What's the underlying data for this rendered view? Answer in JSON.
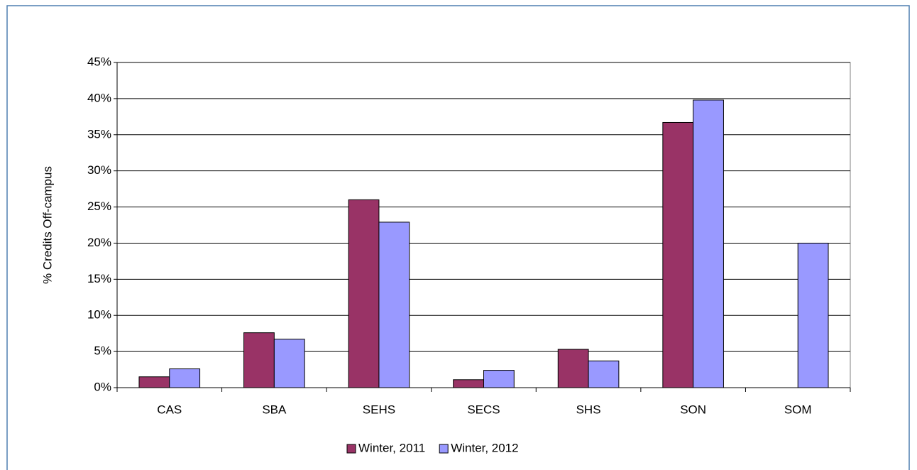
{
  "chart_data": {
    "type": "bar",
    "ylabel": "% Credits Off-campus",
    "categories": [
      "CAS",
      "SBA",
      "SEHS",
      "SECS",
      "SHS",
      "SON",
      "SOM"
    ],
    "series": [
      {
        "name": "Winter, 2011",
        "color": "#993366",
        "values": [
          1.5,
          7.6,
          26,
          1.1,
          5.3,
          36.7,
          null
        ]
      },
      {
        "name": "Winter, 2012",
        "color": "#9999ff",
        "values": [
          2.6,
          6.7,
          22.9,
          2.4,
          3.7,
          39.8,
          20
        ]
      }
    ],
    "ylim": [
      0,
      45
    ],
    "yticks": [
      {
        "value": 0,
        "label": "0%"
      },
      {
        "value": 5,
        "label": "5%"
      },
      {
        "value": 10,
        "label": "10%"
      },
      {
        "value": 15,
        "label": "15%"
      },
      {
        "value": 20,
        "label": "20%"
      },
      {
        "value": 25,
        "label": "25%"
      },
      {
        "value": 30,
        "label": "30%"
      },
      {
        "value": 35,
        "label": "35%"
      },
      {
        "value": 40,
        "label": "40%"
      },
      {
        "value": 45,
        "label": "45%"
      }
    ],
    "grid": true,
    "legend": "bottom"
  }
}
